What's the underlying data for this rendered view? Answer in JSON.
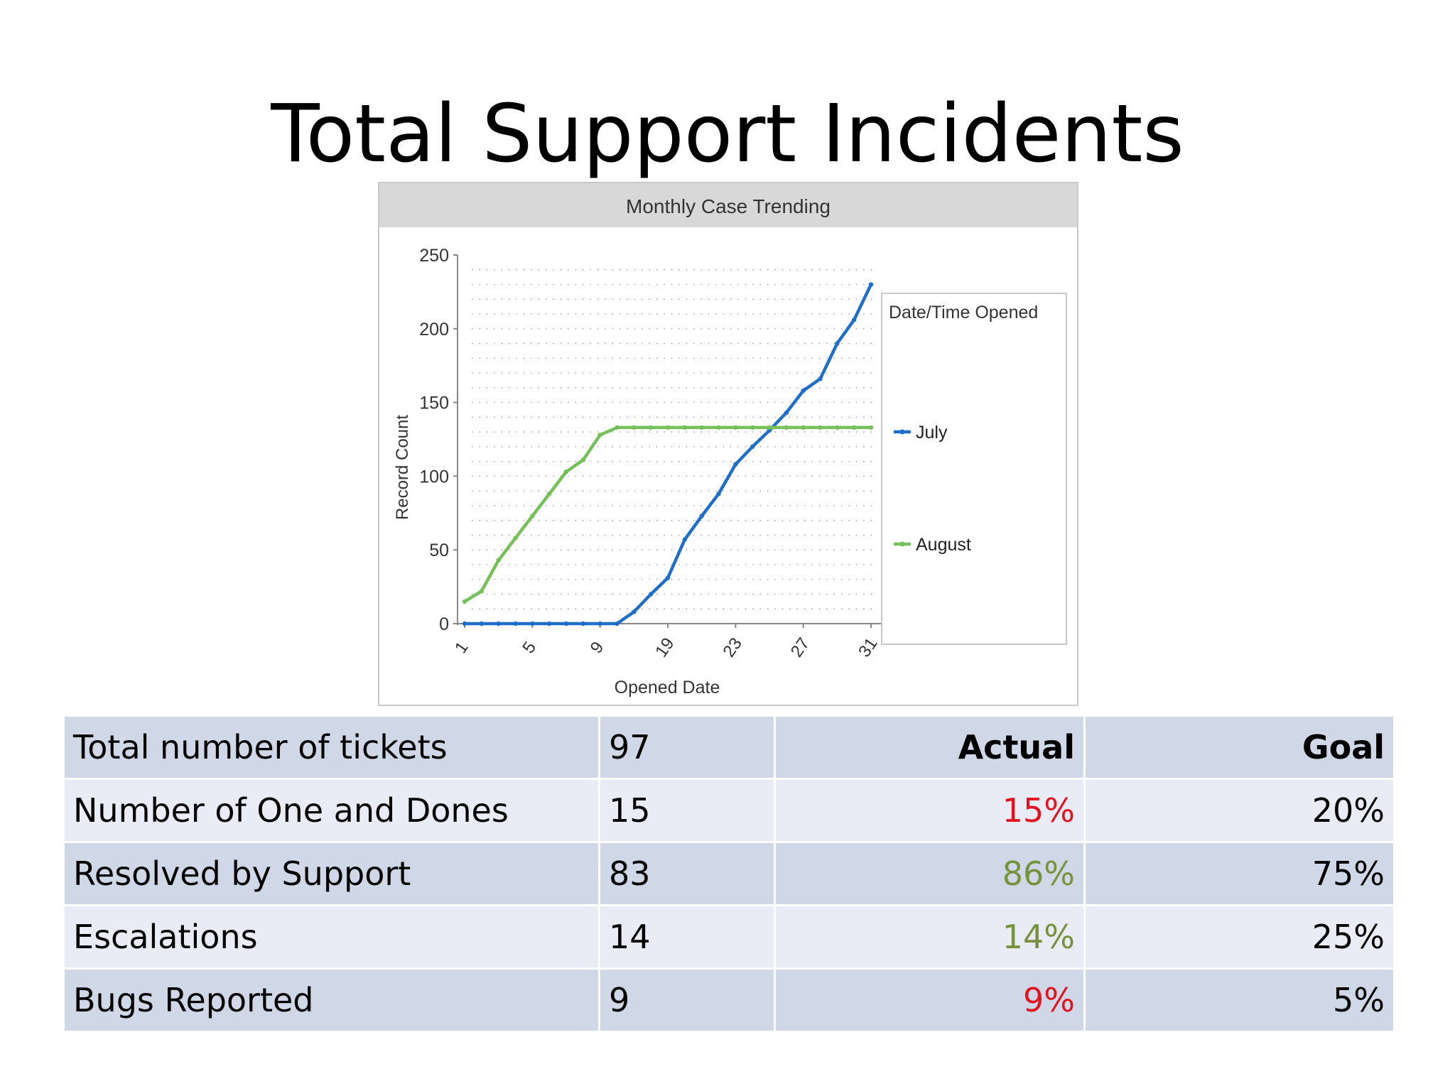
{
  "slide": {
    "title": "Total Support Incidents"
  },
  "colors": {
    "july": "#1f6fc8",
    "august": "#76c05a",
    "red": "#e0141e",
    "green": "#76923c",
    "header_band": "#d8d8d8",
    "row_dark": "#d0d8e8",
    "row_light": "#e9ebf5"
  },
  "chart_data": {
    "type": "line",
    "title": "Monthly Case Trending",
    "xlabel": "Opened Date",
    "ylabel": "Record Count",
    "ylim": [
      0,
      250
    ],
    "yticks": [
      "0",
      "50",
      "100",
      "150",
      "200",
      "250"
    ],
    "xtick_labels": [
      "1",
      "5",
      "9",
      "19",
      "23",
      "27",
      "31"
    ],
    "grid": true,
    "legend_title": "Date/Time Opened",
    "legend_position": "right",
    "series": [
      {
        "name": "July",
        "color": "#1f6fc8",
        "values": [
          0,
          0,
          0,
          0,
          0,
          0,
          0,
          0,
          0,
          0,
          8,
          20,
          31,
          57,
          73,
          88,
          108,
          120,
          131,
          143,
          158,
          166,
          190,
          206,
          230
        ]
      },
      {
        "name": "August",
        "color": "#76c05a",
        "values": [
          15,
          22,
          43,
          58,
          73,
          88,
          103,
          111,
          128,
          133,
          133,
          133,
          133,
          133,
          133,
          133,
          133,
          133,
          133,
          133,
          133,
          133,
          133,
          133,
          133
        ]
      }
    ]
  },
  "table": {
    "rows": [
      {
        "label": "Total number of tickets",
        "count": "97",
        "actual": "Actual",
        "goal": "Goal",
        "header": true
      },
      {
        "label": "Number of One and Dones",
        "count": "15",
        "actual": "15%",
        "goal": "20%",
        "actual_color": "#e0141e"
      },
      {
        "label": "Resolved by Support",
        "count": "83",
        "actual": "86%",
        "goal": "75%",
        "actual_color": "#76923c"
      },
      {
        "label": "Escalations",
        "count": "14",
        "actual": "14%",
        "goal": "25%",
        "actual_color": "#76923c"
      },
      {
        "label": "Bugs Reported",
        "count": "9",
        "actual": "9%",
        "goal": "5%",
        "actual_color": "#e0141e"
      }
    ]
  }
}
